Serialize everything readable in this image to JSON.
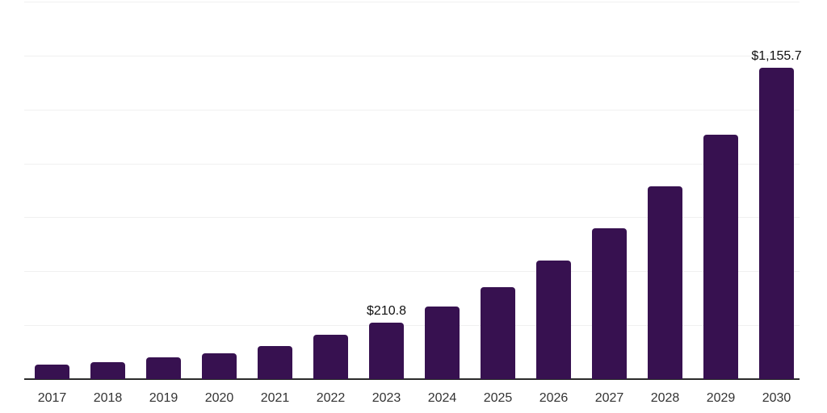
{
  "chart_data": {
    "type": "bar",
    "title": "",
    "xlabel": "",
    "ylabel": "",
    "categories": [
      "2017",
      "2018",
      "2019",
      "2020",
      "2021",
      "2022",
      "2023",
      "2024",
      "2025",
      "2026",
      "2027",
      "2028",
      "2029",
      "2030"
    ],
    "values": [
      54,
      64,
      81,
      97,
      123,
      165,
      210.8,
      270,
      341,
      440,
      558,
      714,
      905,
      1155.7
    ],
    "value_labels": {
      "2023": "$210.8",
      "2030": "$1,155.7"
    },
    "ylim": [
      0,
      1400
    ],
    "grid_step": 200,
    "grid": true,
    "legend": false,
    "y_tick_labels_visible": false,
    "colors": {
      "bar": "#371150",
      "axis_line": "#2b2b2b",
      "gridline": "#f0f0f0",
      "value_label": "#111111",
      "tick_label": "#333333",
      "background": "#ffffff"
    }
  }
}
